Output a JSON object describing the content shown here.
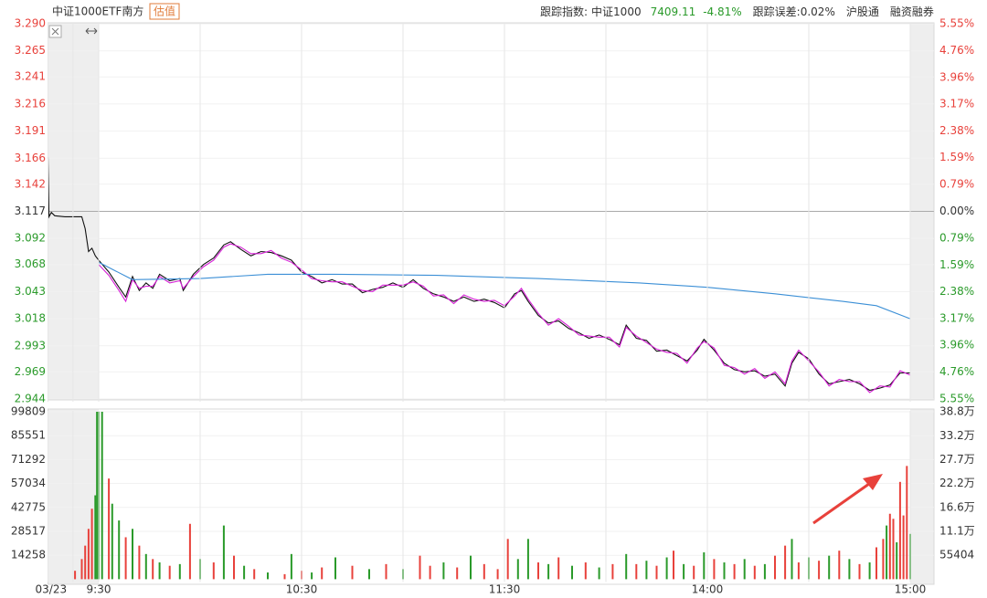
{
  "header": {
    "title": "中证1000ETF南方",
    "badge": "估值",
    "index_label": "跟踪指数:",
    "index_name": "中证1000",
    "index_value": "7409.11",
    "index_change": "-4.81%",
    "error_label": "跟踪误差:",
    "error_value": "0.02%",
    "link1": "沪股通",
    "link2": "融资融券"
  },
  "chart_data": [
    {
      "type": "line",
      "xlim": [
        -15,
        247
      ],
      "ylim": [
        2.944,
        3.29
      ],
      "y2lim": [
        -5.55,
        5.55
      ],
      "up_color": "#e8413b",
      "down_color": "#2a9a2a",
      "flat_color": "#333333",
      "yticks": [
        {
          "value": 3.29,
          "label": "3.290"
        },
        3.265,
        3.241,
        3.216,
        3.191,
        3.166,
        3.142,
        3.117,
        3.092,
        3.068,
        3.043,
        3.018,
        2.993,
        2.969,
        2.944
      ],
      "y2ticks": [
        {
          "value": 5.55,
          "label": "5.55%"
        },
        {
          "value": 4.76,
          "label": "4.76%"
        },
        {
          "value": 3.96,
          "label": "3.96%"
        },
        {
          "value": 3.17,
          "label": "3.17%"
        },
        {
          "value": 2.38,
          "label": "2.38%"
        },
        {
          "value": 1.59,
          "label": "1.59%"
        },
        {
          "value": 0.79,
          "label": "0.79%"
        },
        {
          "value": 0,
          "label": "0.00%"
        },
        {
          "value": -0.79,
          "label": "0.79%"
        },
        {
          "value": -1.59,
          "label": "1.59%"
        },
        {
          "value": -2.38,
          "label": "2.38%"
        },
        {
          "value": -3.17,
          "label": "3.17%"
        },
        {
          "value": -3.96,
          "label": "3.96%"
        },
        {
          "value": -4.76,
          "label": "4.76%"
        },
        {
          "value": -5.55,
          "label": "5.55%"
        }
      ],
      "x": [
        -15,
        -14.7,
        -14,
        -13,
        -10,
        -5,
        -4,
        -3,
        -2,
        -1,
        0,
        3,
        6,
        8,
        10,
        12,
        14,
        16,
        18,
        21,
        24,
        25,
        28,
        31,
        34,
        37,
        39,
        42,
        45,
        48,
        51,
        54,
        57,
        60,
        63,
        66,
        69,
        72,
        75,
        78,
        81,
        84,
        87,
        90,
        93,
        96,
        99,
        102,
        105,
        108,
        111,
        114,
        117,
        120,
        123,
        125,
        127,
        130,
        133,
        136,
        139,
        142,
        145,
        148,
        151,
        154,
        156,
        159,
        162,
        165,
        168,
        171,
        174,
        177,
        179,
        182,
        185,
        188,
        191,
        194,
        197,
        200,
        203,
        205,
        207,
        210,
        213,
        216,
        219,
        222,
        225,
        228,
        231,
        234,
        237,
        240
      ],
      "series": [
        {
          "color": "#111111",
          "values": [
            3.167,
            3.112,
            3.116,
            3.113,
            3.112,
            3.112,
            3.101,
            3.08,
            3.083,
            3.076,
            3.072,
            3.061,
            3.047,
            3.038,
            3.057,
            3.044,
            3.051,
            3.046,
            3.059,
            3.053,
            3.055,
            3.044,
            3.059,
            3.068,
            3.074,
            3.086,
            3.089,
            3.082,
            3.076,
            3.08,
            3.079,
            3.076,
            3.072,
            3.061,
            3.057,
            3.051,
            3.054,
            3.05,
            3.05,
            3.042,
            3.045,
            3.047,
            3.051,
            3.047,
            3.054,
            3.046,
            3.041,
            3.038,
            3.034,
            3.038,
            3.034,
            3.036,
            3.033,
            3.028,
            3.041,
            3.044,
            3.034,
            3.021,
            3.014,
            3.016,
            3.009,
            3.005,
            3.0,
            3.003,
            2.999,
            2.994,
            3.012,
            3.0,
            2.998,
            2.988,
            2.989,
            2.984,
            2.979,
            2.989,
            2.999,
            2.989,
            2.977,
            2.971,
            2.969,
            2.97,
            2.965,
            2.967,
            2.956,
            2.977,
            2.987,
            2.981,
            2.967,
            2.958,
            2.96,
            2.962,
            2.958,
            2.952,
            2.954,
            2.957,
            2.968,
            2.968
          ]
        },
        {
          "color": "#d61fd6",
          "values": [
            null,
            null,
            null,
            null,
            null,
            null,
            null,
            null,
            null,
            null,
            3.068,
            3.058,
            3.044,
            3.034,
            3.054,
            3.046,
            3.048,
            3.048,
            3.057,
            3.051,
            3.053,
            3.046,
            3.057,
            3.066,
            3.072,
            3.084,
            3.087,
            3.084,
            3.078,
            3.078,
            3.081,
            3.074,
            3.07,
            3.063,
            3.055,
            3.053,
            3.052,
            3.052,
            3.048,
            3.044,
            3.043,
            3.049,
            3.049,
            3.049,
            3.052,
            3.048,
            3.039,
            3.04,
            3.032,
            3.04,
            3.036,
            3.034,
            3.035,
            3.03,
            3.039,
            3.046,
            3.036,
            3.023,
            3.012,
            3.018,
            3.011,
            3.003,
            3.002,
            3.001,
            3.001,
            2.992,
            3.01,
            3.002,
            2.996,
            2.99,
            2.987,
            2.986,
            2.977,
            2.991,
            2.997,
            2.991,
            2.975,
            2.973,
            2.967,
            2.972,
            2.963,
            2.969,
            2.958,
            2.979,
            2.989,
            2.979,
            2.969,
            2.956,
            2.962,
            2.96,
            2.96,
            2.95,
            2.956,
            2.955,
            2.97,
            2.966
          ]
        },
        {
          "color": "#3b8fd6",
          "x": [
            0,
            10,
            30,
            50,
            70,
            100,
            130,
            160,
            180,
            200,
            220,
            230,
            240
          ],
          "values": [
            3.07,
            3.054,
            3.055,
            3.059,
            3.059,
            3.058,
            3.055,
            3.051,
            3.047,
            3.041,
            3.034,
            3.03,
            3.018
          ]
        }
      ]
    },
    {
      "type": "bar",
      "xlim": [
        -15,
        247
      ],
      "ylim": [
        0,
        99809
      ],
      "y2lim": [
        0,
        388000
      ],
      "xticks": [
        {
          "value": -15,
          "label": "03/23"
        },
        {
          "value": -7.6,
          "label": null
        },
        {
          "value": 0,
          "label": "9:30"
        },
        {
          "value": 30,
          "label": null
        },
        {
          "value": 60,
          "label": "10:30"
        },
        {
          "value": 90,
          "label": null
        },
        {
          "value": 120,
          "label": "11:30"
        },
        {
          "value": 150,
          "label": null
        },
        {
          "value": 180,
          "label": "14:00"
        },
        {
          "value": 210,
          "label": null
        },
        {
          "value": 240,
          "label": "15:00"
        }
      ],
      "yticks": [
        99809,
        85551,
        71292,
        57034,
        42775,
        28517,
        14258
      ],
      "y2ticks": [
        {
          "value": 388000,
          "label": "38.8万"
        },
        {
          "value": 332000,
          "label": "33.2万"
        },
        {
          "value": 277000,
          "label": "27.7万"
        },
        {
          "value": 222000,
          "label": "22.2万"
        },
        {
          "value": 166000,
          "label": "16.6万"
        },
        {
          "value": 111000,
          "label": "11.1万"
        },
        55404
      ],
      "series": [
        {
          "color": "#e8413b",
          "x": [
            -7,
            -5,
            -4,
            -3,
            -2,
            3,
            8,
            12,
            16,
            21,
            27,
            34,
            40,
            46,
            55,
            60,
            66,
            75,
            85,
            95,
            98,
            106,
            114,
            118,
            121,
            130,
            136,
            144,
            152,
            159,
            165,
            170,
            176,
            182,
            188,
            194,
            200,
            203,
            207,
            213,
            219,
            225,
            230,
            232,
            234,
            235,
            237,
            238,
            239
          ],
          "values": [
            5000,
            12000,
            20000,
            30000,
            42000,
            60000,
            25000,
            20000,
            12000,
            8000,
            33000,
            10000,
            14000,
            6000,
            3000,
            5000,
            7000,
            8000,
            9000,
            14000,
            8000,
            7000,
            9000,
            6000,
            24000,
            10000,
            13000,
            10000,
            9000,
            9000,
            8000,
            17000,
            8000,
            12000,
            9000,
            8000,
            14000,
            20000,
            10000,
            11000,
            17000,
            9000,
            19000,
            24000,
            39000,
            36000,
            58000,
            38000,
            67500
          ]
        },
        {
          "color": "#2a9a2a",
          "x": [
            -1,
            -0.5,
            0,
            1,
            4,
            6,
            10,
            14,
            18,
            24,
            30,
            37,
            43,
            50,
            57,
            63,
            70,
            80,
            90,
            102,
            110,
            124,
            127,
            133,
            140,
            148,
            156,
            162,
            168,
            173,
            179,
            185,
            191,
            197,
            205,
            210,
            216,
            222,
            228,
            233,
            236,
            240
          ],
          "values": [
            50000,
            99809,
            99809,
            99809,
            45000,
            35000,
            30000,
            15000,
            10000,
            9000,
            12000,
            32000,
            8000,
            4000,
            15000,
            4000,
            13000,
            6000,
            6000,
            10000,
            14000,
            12000,
            24000,
            9000,
            8000,
            7000,
            15000,
            11000,
            13000,
            9000,
            16000,
            10000,
            12000,
            9000,
            24000,
            13000,
            14000,
            12000,
            10000,
            32000,
            22000,
            27000
          ]
        }
      ]
    }
  ]
}
